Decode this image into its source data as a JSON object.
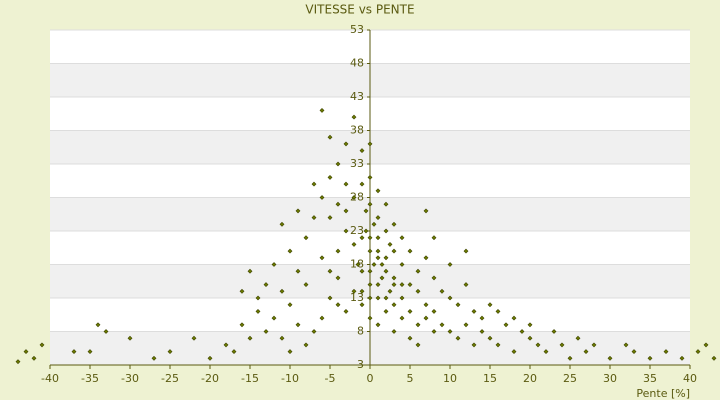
{
  "chart_data": {
    "type": "scatter",
    "title": "VITESSE vs PENTE",
    "x_label": "Pente [%]",
    "xlim": [
      -40,
      40
    ],
    "xticks": [
      -40,
      -35,
      -30,
      -25,
      -20,
      -15,
      -10,
      -5,
      0,
      5,
      10,
      15,
      20,
      25,
      30,
      35,
      40
    ],
    "ylim": [
      3,
      53
    ],
    "yticks": [
      3,
      8,
      13,
      18,
      23,
      28,
      33,
      38,
      43,
      48,
      53
    ],
    "grid": true,
    "color": "#6b7a00",
    "series": [
      {
        "x": [
          0,
          1,
          -1,
          2,
          0.5,
          -2,
          3,
          1.5,
          -0.5,
          0,
          2.5,
          4,
          -3,
          -1.5,
          1,
          3,
          5,
          6,
          7,
          8,
          -4,
          -5,
          -6,
          -2,
          -1,
          0,
          1,
          -3,
          -4,
          -5,
          -6,
          -2,
          -3,
          -1,
          0,
          2,
          3,
          4,
          5,
          6,
          7,
          8,
          9,
          10,
          11,
          12,
          13,
          14,
          15,
          16,
          17,
          18,
          20,
          22,
          24,
          25,
          27,
          30,
          32,
          35,
          37,
          -8,
          -9,
          -10,
          -11,
          -12,
          -13,
          -14,
          -15,
          -16,
          -17,
          -18,
          -20,
          -22,
          -25,
          -27,
          -30,
          -34,
          -35,
          -33,
          -8,
          -7,
          -9,
          -10,
          -11,
          -12,
          -13,
          -14,
          -15,
          -16,
          -6,
          -7,
          -5,
          -4,
          -3,
          0,
          1,
          2,
          3,
          4,
          5,
          6,
          7,
          8,
          9,
          10,
          11,
          12,
          13,
          14,
          15,
          16,
          18,
          19,
          20,
          21,
          23,
          26,
          28,
          -1,
          0,
          1,
          2,
          3,
          4,
          5,
          6,
          -2,
          -3,
          -4,
          -5,
          -6,
          -7,
          -8,
          -9,
          -10,
          -11,
          -5,
          -4,
          8,
          7,
          10,
          12,
          -1,
          0,
          1,
          2,
          1,
          0,
          -1,
          3,
          2,
          4,
          1,
          -0.5,
          0.5,
          1.5,
          2.5,
          0,
          -42,
          -43,
          -41,
          41,
          42,
          43,
          -44,
          -37,
          39,
          33
        ],
        "values": [
          20,
          19,
          22,
          17,
          24,
          21,
          16,
          18,
          26,
          15,
          14,
          13,
          23,
          18,
          22,
          12,
          11,
          9,
          10,
          8,
          20,
          25,
          19,
          28,
          30,
          27,
          25,
          30,
          33,
          37,
          41,
          40,
          36,
          35,
          31,
          23,
          20,
          18,
          15,
          14,
          12,
          11,
          9,
          8,
          7,
          9,
          6,
          8,
          7,
          6,
          9,
          5,
          7,
          5,
          6,
          4,
          5,
          4,
          6,
          4,
          5,
          15,
          17,
          12,
          14,
          10,
          8,
          11,
          7,
          9,
          5,
          6,
          4,
          7,
          5,
          4,
          7,
          9,
          5,
          8,
          22,
          25,
          26,
          20,
          24,
          18,
          15,
          13,
          17,
          14,
          28,
          30,
          31,
          27,
          26,
          36,
          29,
          27,
          24,
          22,
          20,
          17,
          19,
          16,
          14,
          13,
          12,
          15,
          11,
          10,
          12,
          11,
          10,
          8,
          9,
          6,
          8,
          7,
          6,
          12,
          10,
          9,
          11,
          8,
          10,
          7,
          6,
          14,
          11,
          16,
          13,
          10,
          8,
          6,
          9,
          5,
          7,
          17,
          12,
          22,
          26,
          18,
          20,
          17,
          17,
          15,
          13,
          13,
          13,
          14,
          15,
          19,
          15,
          20,
          23,
          18,
          16,
          21,
          22,
          4,
          5,
          6,
          5,
          6,
          4,
          3.5,
          5,
          4,
          5
        ]
      }
    ]
  }
}
